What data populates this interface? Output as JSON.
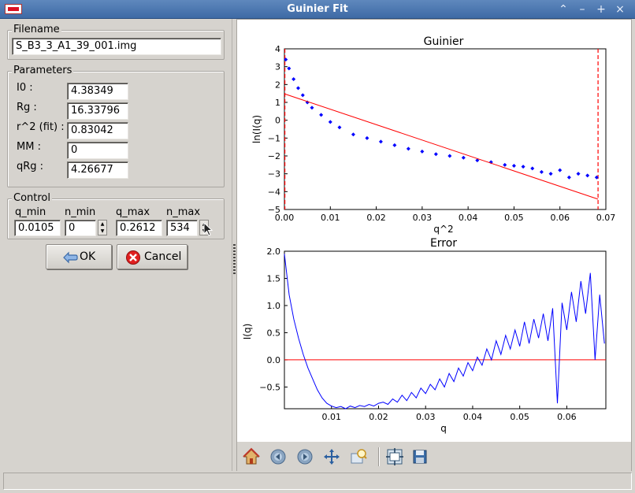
{
  "window": {
    "title": "Guinier Fit"
  },
  "filename": {
    "legend": "Filename",
    "value": "S_B3_3_A1_39_001.img"
  },
  "parameters": {
    "legend": "Parameters",
    "rows": [
      {
        "label": "I0 :",
        "value": "4.38349"
      },
      {
        "label": "Rg :",
        "value": "16.33796"
      },
      {
        "label": "r^2 (fit) :",
        "value": "0.83042"
      },
      {
        "label": "MM :",
        "value": "0"
      },
      {
        "label": "qRg :",
        "value": "4.26677"
      }
    ]
  },
  "control": {
    "legend": "Control",
    "q_min_label": "q_min",
    "n_min_label": "n_min",
    "q_max_label": "q_max",
    "n_max_label": "n_max",
    "q_min": "0.0105",
    "n_min": "0",
    "q_max": "0.2612",
    "n_max": "534"
  },
  "buttons": {
    "ok": "OK",
    "cancel": "Cancel"
  },
  "toolbar_icons": [
    "home-icon",
    "back-icon",
    "forward-icon",
    "pan-icon",
    "zoom-icon",
    "subplots-icon",
    "save-icon"
  ],
  "colors": {
    "data": "#0000ff",
    "fit": "#ff0000",
    "titlebar": "#4a76b0"
  },
  "chart_data": [
    {
      "type": "scatter",
      "title": "Guinier",
      "xlabel": "q^2",
      "ylabel": "ln(I(q)",
      "xlim": [
        0.0,
        0.07
      ],
      "ylim": [
        -5,
        4
      ],
      "xticks": [
        "0.00",
        "0.01",
        "0.02",
        "0.03",
        "0.04",
        "0.05",
        "0.06",
        "0.07"
      ],
      "yticks": [
        "4",
        "3",
        "2",
        "1",
        "0",
        "−1",
        "−2",
        "−3",
        "−4",
        "−5"
      ],
      "series": [
        {
          "values_x": [
            0.0003,
            0.001,
            0.002,
            0.003,
            0.004,
            0.005,
            0.006,
            0.008,
            0.01,
            0.012,
            0.015,
            0.018,
            0.021,
            0.024,
            0.027,
            0.03,
            0.033,
            0.036,
            0.039,
            0.042,
            0.045,
            0.048,
            0.05,
            0.052,
            0.054,
            0.056,
            0.058,
            0.06,
            0.062,
            0.064,
            0.066,
            0.068
          ],
          "values_y": [
            3.4,
            2.9,
            2.3,
            1.8,
            1.4,
            1.0,
            0.7,
            0.3,
            -0.1,
            -0.4,
            -0.8,
            -1.0,
            -1.2,
            -1.4,
            -1.6,
            -1.75,
            -1.9,
            -2.0,
            -2.1,
            -2.25,
            -2.35,
            -2.5,
            -2.55,
            -2.6,
            -2.7,
            -2.9,
            -3.0,
            -2.8,
            -3.2,
            -3.0,
            -3.1,
            -3.2
          ]
        }
      ],
      "fit_line": {
        "x": [
          0.0,
          0.0683
        ],
        "y": [
          1.48,
          -4.42
        ]
      },
      "range_markers": [
        0.0001,
        0.0683
      ]
    },
    {
      "type": "line",
      "title": "Error",
      "xlabel": "q",
      "ylabel": "I(q)",
      "xlim": [
        0.0,
        0.0683
      ],
      "ylim": [
        -0.9,
        2.0
      ],
      "xticks": [
        "0.01",
        "0.02",
        "0.03",
        "0.04",
        "0.05",
        "0.06"
      ],
      "yticks": [
        "2.0",
        "1.5",
        "1.0",
        "0.5",
        "0.0",
        "−0.5"
      ],
      "zero_line": 0.0,
      "x": [
        0.0,
        0.001,
        0.002,
        0.003,
        0.004,
        0.005,
        0.006,
        0.007,
        0.008,
        0.009,
        0.01,
        0.011,
        0.012,
        0.013,
        0.014,
        0.015,
        0.016,
        0.017,
        0.018,
        0.019,
        0.02,
        0.021,
        0.022,
        0.023,
        0.024,
        0.025,
        0.026,
        0.027,
        0.028,
        0.029,
        0.03,
        0.031,
        0.032,
        0.033,
        0.034,
        0.035,
        0.036,
        0.037,
        0.038,
        0.039,
        0.04,
        0.041,
        0.042,
        0.043,
        0.044,
        0.045,
        0.046,
        0.047,
        0.048,
        0.049,
        0.05,
        0.051,
        0.052,
        0.053,
        0.054,
        0.055,
        0.056,
        0.057,
        0.058,
        0.059,
        0.06,
        0.061,
        0.062,
        0.063,
        0.064,
        0.065,
        0.066,
        0.067,
        0.068
      ],
      "y": [
        1.95,
        1.2,
        0.75,
        0.4,
        0.1,
        -0.15,
        -0.35,
        -0.55,
        -0.7,
        -0.8,
        -0.85,
        -0.88,
        -0.86,
        -0.9,
        -0.85,
        -0.88,
        -0.84,
        -0.86,
        -0.82,
        -0.85,
        -0.8,
        -0.78,
        -0.82,
        -0.72,
        -0.78,
        -0.65,
        -0.75,
        -0.6,
        -0.7,
        -0.52,
        -0.62,
        -0.45,
        -0.55,
        -0.35,
        -0.5,
        -0.25,
        -0.4,
        -0.15,
        -0.3,
        -0.05,
        -0.2,
        0.05,
        -0.1,
        0.2,
        0.0,
        0.35,
        0.1,
        0.45,
        0.2,
        0.55,
        0.25,
        0.7,
        0.3,
        0.75,
        0.4,
        0.85,
        0.35,
        0.95,
        -0.8,
        1.05,
        0.55,
        1.25,
        0.7,
        1.45,
        0.85,
        1.6,
        0.0,
        1.2,
        0.3
      ]
    }
  ]
}
